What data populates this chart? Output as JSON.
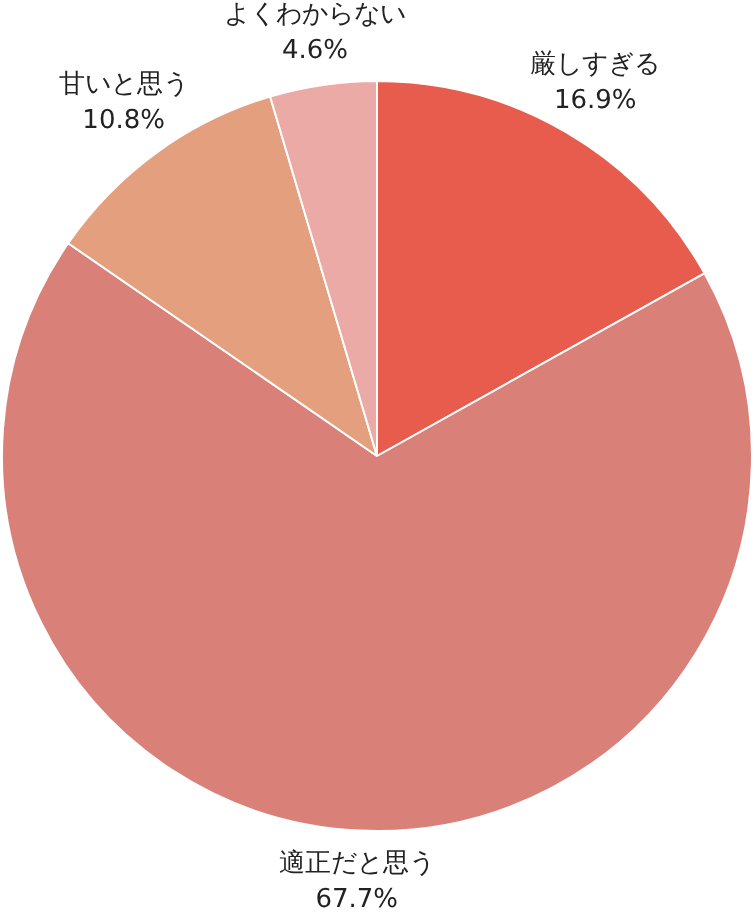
{
  "chart_data": {
    "type": "pie",
    "categories": [
      "厳しすぎる",
      "適正だと思う",
      "甘いと思う",
      "よくわからない"
    ],
    "values": [
      16.9,
      67.7,
      10.8,
      4.6
    ],
    "colors": [
      "#e85c4e",
      "#d98079",
      "#e4a07e",
      "#ebaaa5"
    ],
    "value_labels": [
      "16.9%",
      "67.7%",
      "10.8%",
      "4.6%"
    ],
    "legend": false
  }
}
